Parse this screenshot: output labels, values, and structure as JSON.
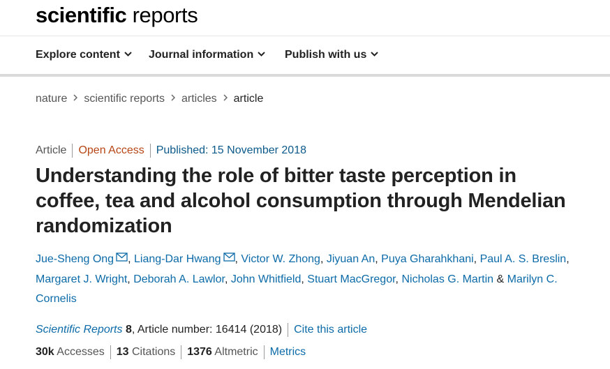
{
  "header": {
    "logo_bold": "scientific",
    "logo_light": "reports"
  },
  "nav": {
    "items": [
      {
        "label": "Explore content"
      },
      {
        "label": "Journal information"
      },
      {
        "label": "Publish with us"
      }
    ]
  },
  "breadcrumb": [
    "nature",
    "scientific reports",
    "articles",
    "article"
  ],
  "article": {
    "type": "Article",
    "access": "Open Access",
    "published": "Published: 15 November 2018",
    "title": "Understanding the role of bitter taste perception in coffee, tea and alcohol consumption through Mendelian randomization",
    "authors": [
      "Jue-Sheng Ong",
      "Liang-Dar Hwang",
      "Victor W. Zhong",
      "Jiyuan An",
      "Puya Gharahkhani",
      "Paul A. S. Breslin",
      "Margaret J. Wright",
      "Deborah A. Lawlor",
      "John Whitfield",
      "Stuart MacGregor",
      "Nicholas G. Martin",
      "Marilyn C. Cornelis"
    ],
    "author_separator": ",",
    "author_conjunction": "&",
    "journal": "Scientific Reports",
    "volume": "8",
    "article_number": ", Article number: 16414 (2018)",
    "cite_label": "Cite this article"
  },
  "metrics": {
    "accesses_count": "30k",
    "accesses_label": "Accesses",
    "citations_count": "13",
    "citations_label": "Citations",
    "altmetric_count": "1376",
    "altmetric_label": "Altmetric",
    "metrics_link": "Metrics"
  },
  "colors": {
    "link": "#0c6ba8",
    "open_access": "#b74616",
    "text": "#222222"
  }
}
